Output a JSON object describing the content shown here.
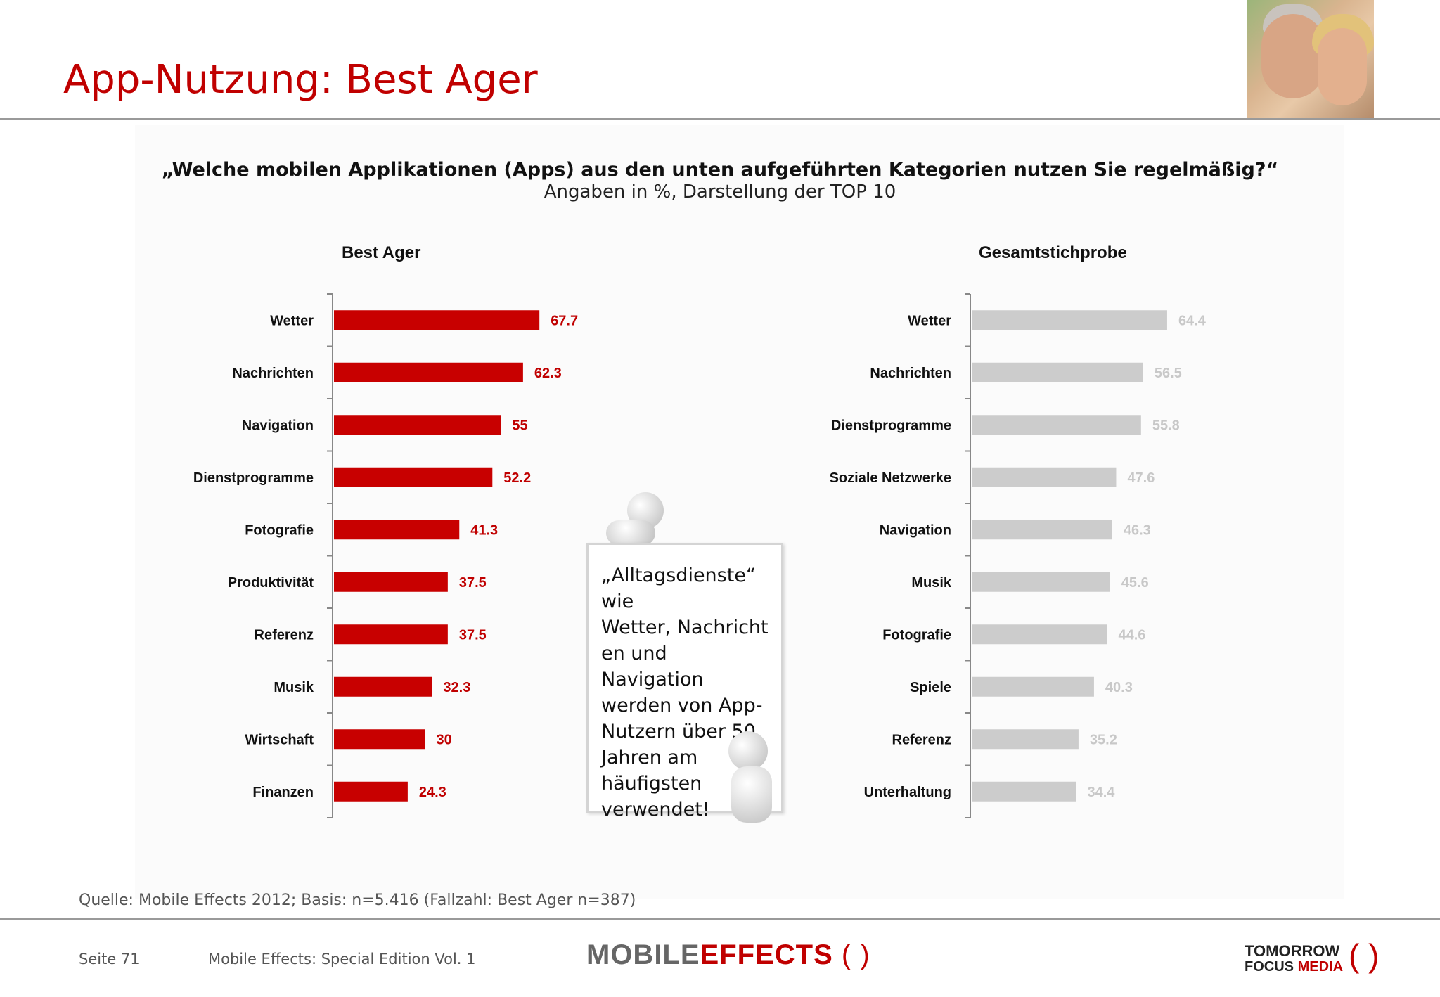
{
  "page": {
    "title": "App-Nutzung: Best Ager",
    "question": "„Welche mobilen Applikationen (Apps) aus den unten aufgeführten Kategorien nutzen Sie regelmäßig?“",
    "subtitle": "Angaben in %, Darstellung der TOP 10",
    "callout": "„Alltagsdienste“\nwie\nWetter, Nachricht\nen und\nNavigation\nwerden von App-\nNutzern über 50\nJahren am\nhäufigsten\nverwendet!",
    "source": "Quelle: Mobile Effects 2012; Basis: n=5.416 (Fallzahl: Best Ager n=387)",
    "page_number": "Seite 71",
    "footer_title": "Mobile Effects: Special Edition Vol. 1",
    "logo_mobile": "MOBILE",
    "logo_effects": "EFFECTS",
    "logo_paren": "( )",
    "logo_tfm_line1": "TOMORROW",
    "logo_tfm_line2a": "FOCUS",
    "logo_tfm_line2b": "MEDIA",
    "logo_tfm_paren": "( )"
  },
  "colors": {
    "accent": "#c00000",
    "bar_best_ager": "#c80000",
    "bar_total": "#cccccc",
    "label_total": "#c8c8c8"
  },
  "chart_data": [
    {
      "type": "bar",
      "orientation": "horizontal",
      "title": "Best Ager",
      "categories": [
        "Wetter",
        "Nachrichten",
        "Navigation",
        "Dienstprogramme",
        "Fotografie",
        "Produktivität",
        "Referenz",
        "Musik",
        "Wirtschaft",
        "Finanzen"
      ],
      "values": [
        67.7,
        62.3,
        55,
        52.2,
        41.3,
        37.5,
        37.5,
        32.3,
        30,
        24.3
      ],
      "value_labels": [
        "67.7",
        "62.3",
        "55",
        "52.2",
        "41.3",
        "37.5",
        "37.5",
        "32.3",
        "30",
        "24.3"
      ],
      "color": "#c80000",
      "xlim": [
        0,
        100
      ]
    },
    {
      "type": "bar",
      "orientation": "horizontal",
      "title": "Gesamtstichprobe",
      "categories": [
        "Wetter",
        "Nachrichten",
        "Dienstprogramme",
        "Soziale Netzwerke",
        "Navigation",
        "Musik",
        "Fotografie",
        "Spiele",
        "Referenz",
        "Unterhaltung"
      ],
      "values": [
        64.4,
        56.5,
        55.8,
        47.6,
        46.3,
        45.6,
        44.6,
        40.3,
        35.2,
        34.4
      ],
      "value_labels": [
        "64.4",
        "56.5",
        "55.8",
        "47.6",
        "46.3",
        "45.6",
        "44.6",
        "40.3",
        "35.2",
        "34.4"
      ],
      "color": "#cccccc",
      "xlim": [
        0,
        100
      ]
    }
  ]
}
